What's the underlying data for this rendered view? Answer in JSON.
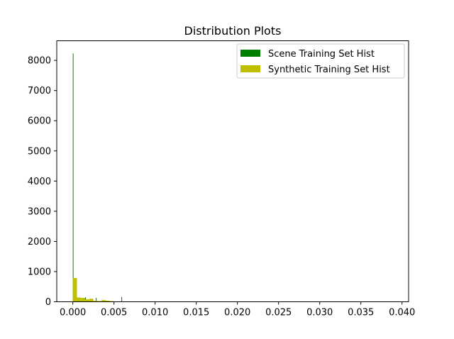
{
  "chart_data": {
    "type": "bar",
    "title": "Distribution Plots",
    "xlabel": "",
    "ylabel": "",
    "xlim": [
      -0.00195,
      0.0408
    ],
    "ylim": [
      0,
      8650
    ],
    "x_ticks": [
      0.0,
      0.005,
      0.01,
      0.015,
      0.02,
      0.025,
      0.03,
      0.035,
      0.04
    ],
    "x_tick_labels": [
      "0.000",
      "0.005",
      "0.010",
      "0.015",
      "0.020",
      "0.025",
      "0.030",
      "0.035",
      "0.040"
    ],
    "y_ticks": [
      0,
      1000,
      2000,
      3000,
      4000,
      5000,
      6000,
      7000,
      8000
    ],
    "y_tick_labels": [
      "0",
      "1000",
      "2000",
      "3000",
      "4000",
      "5000",
      "6000",
      "7000",
      "8000"
    ],
    "legend_position": "top-right",
    "series": [
      {
        "name": "Scene Training Set Hist",
        "color": "#008000",
        "bin_width": 6e-05,
        "bars": [
          {
            "x": 0.0,
            "value": 8230
          },
          {
            "x": 0.0015,
            "value": 150
          },
          {
            "x": 0.0028,
            "value": 130
          },
          {
            "x": 0.0059,
            "value": 160
          }
        ]
      },
      {
        "name": "Synthetic Training Set Hist",
        "color": "#bfbf00",
        "bin_width": 0.0005,
        "bars": [
          {
            "x": 0.0,
            "value": 790
          },
          {
            "x": 0.0005,
            "value": 140
          },
          {
            "x": 0.001,
            "value": 130
          },
          {
            "x": 0.0015,
            "value": 80
          },
          {
            "x": 0.002,
            "value": 100
          },
          {
            "x": 0.0025,
            "value": 30
          },
          {
            "x": 0.003,
            "value": 25
          },
          {
            "x": 0.0035,
            "value": 55
          },
          {
            "x": 0.004,
            "value": 35
          },
          {
            "x": 0.0045,
            "value": 20
          },
          {
            "x": 0.005,
            "value": 8
          }
        ]
      }
    ]
  }
}
